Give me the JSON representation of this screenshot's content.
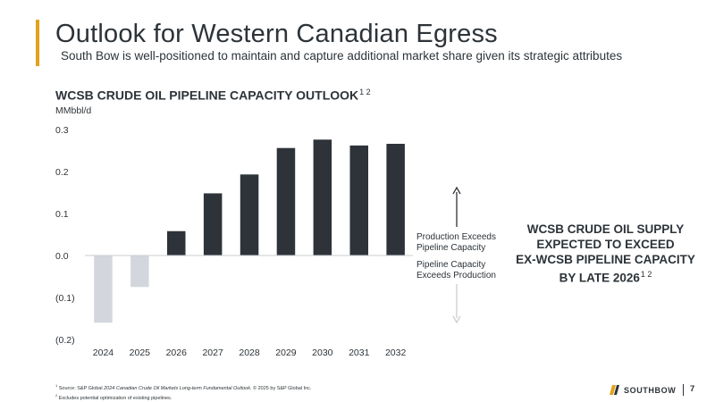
{
  "header": {
    "title": "Outlook for Western Canadian Egress",
    "subtitle": "South Bow is well-positioned to maintain and capture additional market share given its strategic attributes"
  },
  "chart_data": {
    "type": "bar",
    "title": "WCSB CRUDE OIL PIPELINE CAPACITY OUTLOOK",
    "title_sup": "1 2",
    "ylabel": "MMbbl/d",
    "xlabel": "",
    "categories": [
      "2024",
      "2025",
      "2026",
      "2027",
      "2028",
      "2029",
      "2030",
      "2031",
      "2032"
    ],
    "values": [
      -0.16,
      -0.075,
      0.058,
      0.148,
      0.193,
      0.256,
      0.276,
      0.262,
      0.266
    ],
    "ylim": [
      -0.2,
      0.3
    ],
    "yticks": [
      0.3,
      0.2,
      0.1,
      0.0,
      -0.1,
      -0.2
    ],
    "ytick_labels": [
      "0.3",
      "0.2",
      "0.1",
      "0.0",
      "(0.1)",
      "(0.2)"
    ],
    "colors": {
      "positive": "#2d3338",
      "negative": "#d3d6dc",
      "zero_line": "#c9cdd2"
    },
    "grid": false,
    "legend": "none"
  },
  "annotations": {
    "up_label": [
      "Production Exceeds",
      "Pipeline Capacity"
    ],
    "down_label": [
      "Pipeline Capacity",
      "Exceeds Production"
    ],
    "up_arrow_color": "#2d3338",
    "down_arrow_color": "#c9cdd2"
  },
  "callout": {
    "lines": [
      "WCSB CRUDE OIL SUPPLY",
      "EXPECTED TO EXCEED",
      "EX-WCSB PIPELINE CAPACITY",
      "BY LATE 2026"
    ],
    "sup": "1 2"
  },
  "footnotes": {
    "note1_num": "1",
    "note1_a": "Source: S&P Global ",
    "note1_italic": "2024 Canadian Crude Oil Markets Long-term Fundamental Outlook",
    "note1_b": ". © 2025 by S&P Global Inc.",
    "note2_num": "2",
    "note2": "Excludes potential optimization of existing pipelines."
  },
  "footer": {
    "logo_text": "SOUTHBOW",
    "page_number": "7",
    "logo_icon": "southbow-logo-icon"
  }
}
